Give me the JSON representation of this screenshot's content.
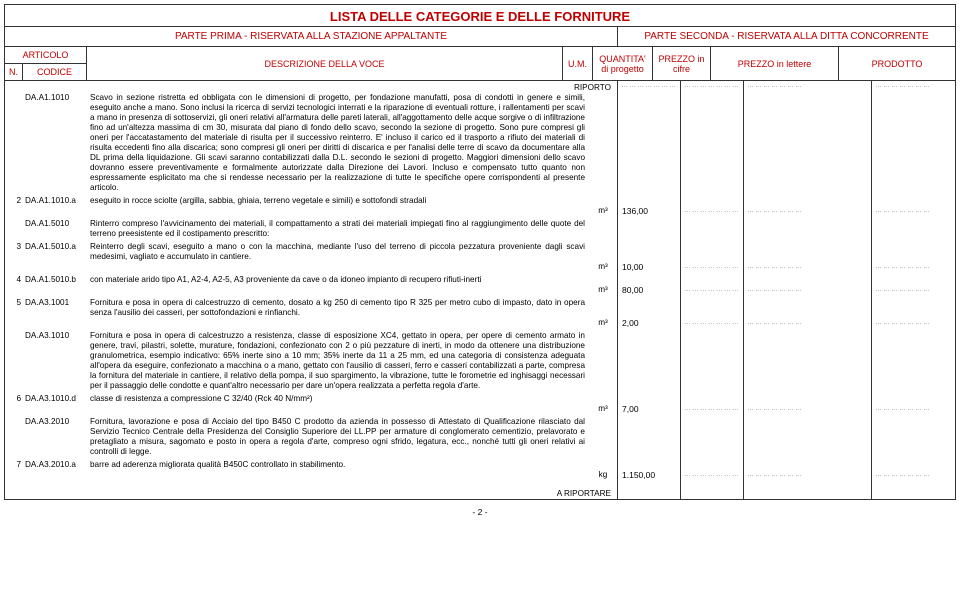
{
  "document": {
    "title": "LISTA DELLE CATEGORIE E DELLE FORNITURE",
    "header_left": "PARTE PRIMA - RISERVATA ALLA STAZIONE APPALTANTE",
    "header_right": "PARTE SECONDA - RISERVATA ALLA DITTA CONCORRENTE",
    "page_number": "- 2 -",
    "riporto": "RIPORTO",
    "a_riportare": "A RIPORTARE"
  },
  "columns": {
    "articolo": "ARTICOLO",
    "n": "N.",
    "codice": "CODICE",
    "descrizione": "DESCRIZIONE DELLA VOCE",
    "um": "U.M.",
    "quantita": "QUANTITA' di progetto",
    "prezzo_cifre": "PREZZO in cifre",
    "prezzo_lettere": "PREZZO in lettere",
    "prodotto": "PRODOTTO"
  },
  "rows": [
    {
      "n": "",
      "code": "DA.A1.1010",
      "desc": "Scavo in sezione ristretta ed obbligata con le dimensioni di progetto, per fondazione manufatti, posa di condotti in genere e simili, eseguito anche a mano.\nSono inclusi la ricerca di servizi tecnologici interrati e la riparazione di eventuali rotture, i rallentamenti per scavi a mano in presenza di sottoservizi, gli oneri relativi all'armatura delle pareti laterali, all'aggottamento delle acque sorgive o di infiltrazione fino ad un'altezza massima di cm 30, misurata dal piano di fondo dello scavo, secondo la sezione di progetto.\nSono pure compresi gli oneri per l'accatastamento del materiale di risulta per il successivo reinterro.\nE' incluso il carico ed il trasporto a rifiuto dei materiali di risulta eccedenti fino alla discarica; sono compresi gli oneri per diritti di discarica e per l'analisi delle terre di scavo da documentare alla DL prima della liquidazione.\nGli scavi saranno contabilizzati dalla D.L. secondo le sezioni di progetto. Maggiori dimensioni dello scavo dovranno essere preventivamente e formalmente autorizzate dalla Direzione dei Lavori.\nIncluso e compensato tutto quanto non espressamente esplicitato ma che si rendesse necessario per la realizzazione di tutte le specifiche opere corrispondenti al presente articolo."
    },
    {
      "n": "2",
      "code": "DA.A1.1010.a",
      "desc": "eseguito in rocce sciolte (argilla, sabbia, ghiaia, terreno vegetale e simili) e sottofondi stradali",
      "um": "m³",
      "qty": "136,00"
    },
    {
      "n": "",
      "code": "DA.A1.5010",
      "desc": "Rinterro compreso l'avvicinamento dei materiali, il compattamento a strati dei materiali impiegati fino al raggiungimento delle quote del terreno preesistente ed il costipamento prescritto:"
    },
    {
      "n": "3",
      "code": "DA.A1.5010.a",
      "desc": "Reinterro degli scavi, eseguito a mano o con la macchina, mediante l'uso del terreno di piccola pezzatura proveniente dagli scavi medesimi, vagliato e accumulato in cantiere.",
      "um": "m³",
      "qty": "10,00"
    },
    {
      "n": "4",
      "code": "DA.A1.5010.b",
      "desc": "con materiale arido tipo A1, A2-4, A2-5, A3 proveniente da cave o da idoneo impianto di recupero rifiuti-inerti",
      "um": "m³",
      "qty": "80,00"
    },
    {
      "n": "5",
      "code": "DA.A3.1001",
      "desc": "Fornitura e posa in opera di calcestruzzo di cemento, dosato a kg 250 di cemento tipo R 325 per metro cubo di impasto, dato in opera senza l'ausilio dei casseri, per sottofondazioni e rinfianchi.",
      "um": "m³",
      "qty": "2,00"
    },
    {
      "n": "",
      "code": "DA.A3.1010",
      "desc": "Fornitura e posa in opera di calcestruzzo a resistenza, classe di esposizione XC4, gettato in opera, per opere di cemento armato in genere, travi, pilastri, solette, murature, fondazioni, confezionato con 2 o più pezzature di inerti, in modo da ottenere una distribuzione granulometrica, esempio indicativo: 65% inerte sino a 10 mm; 35% inerte da 11 a 25 mm, ed una categoria di consistenza adeguata all'opera da eseguire, confezionato a macchina o a mano, gettato con l'ausilio di casseri, ferro e casseri contabilizzati a parte, compresa la fornitura del materiale in cantiere, il relativo della pompa, il suo spargimento, la vibrazione, tutte le forometrie ed inghisaggi necessari per il passaggio delle condotte e quant'altro necessario per dare un'opera realizzata a perfetta regola d'arte."
    },
    {
      "n": "6",
      "code": "DA.A3.1010.d",
      "desc": "classe di resistenza a compressione C 32/40 (Rck 40 N/mm²)",
      "um": "m³",
      "qty": "7,00"
    },
    {
      "n": "",
      "code": "DA.A3.2010",
      "desc": "Fornitura, lavorazione e posa di Acciaio del tipo B450 C prodotto da azienda in possesso di Attestato di Qualificazione rilasciato dal Servizio Tecnico Centrale della Presidenza del Consiglio Superiore dei LL.PP per armature di conglomerato cementizio, prelavorato e pretagliato a misura, sagomato e posto in opera a regola d'arte, compreso ogni sfrido, legatura, ecc., nonché tutti gli oneri relativi ai controlli di legge."
    },
    {
      "n": "7",
      "code": "DA.A3.2010.a",
      "desc": "barre ad aderenza migliorata qualità B450C controllato in stabilimento.",
      "um": "kg",
      "qty": "1.150,00"
    }
  ],
  "style": {
    "accent_color": "#c00000",
    "border_color": "#333333",
    "background": "#ffffff",
    "font_family": "Verdana",
    "title_fontsize": 13,
    "body_fontsize": 8.2
  }
}
